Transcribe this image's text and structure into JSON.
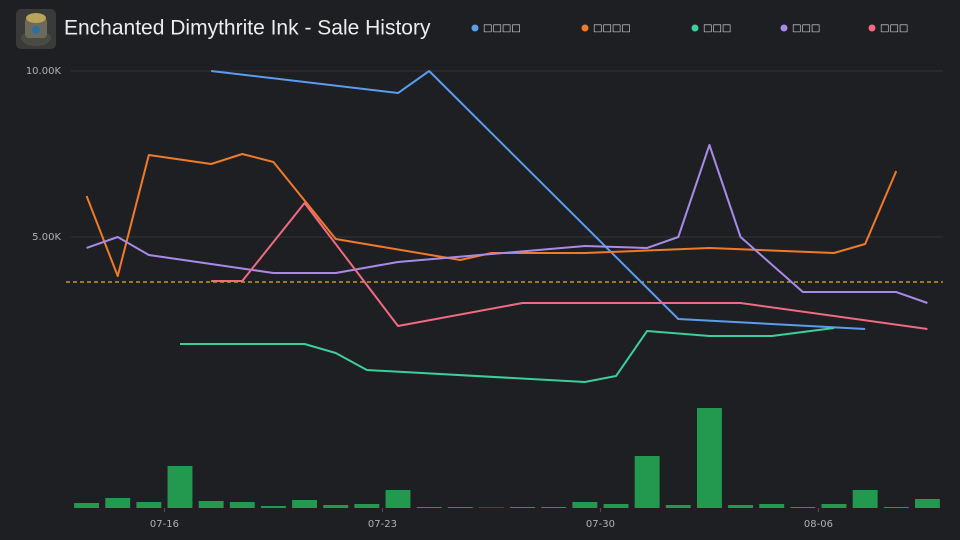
{
  "chart_data": [
    {
      "type": "line",
      "title": "Enchanted Dimythrite Ink - Sale History",
      "xlim": [
        "07-13",
        "08-09"
      ],
      "xticks": [
        "07-16",
        "07-23",
        "07-30",
        "08-06"
      ],
      "ylim": [
        0,
        10000
      ],
      "yticks": [
        {
          "value": 10000,
          "label": "10.00K"
        },
        {
          "value": 5000,
          "label": "5.00K"
        }
      ],
      "grid": true,
      "hline": 3645,
      "hline_color": "#d9b526",
      "series": [
        {
          "name": "□□□□",
          "color": "#5b9cf0",
          "x": [
            "07-17",
            "07-23",
            "07-24",
            "08-01",
            "08-07"
          ],
          "values": [
            10000,
            9337,
            10000,
            2530,
            2229
          ]
        },
        {
          "name": "□□□□",
          "color": "#f07a2a",
          "x": [
            "07-13",
            "07-14",
            "07-15",
            "07-17",
            "07-18",
            "07-19",
            "07-21",
            "07-25",
            "07-26",
            "07-29",
            "08-02",
            "08-06",
            "08-07",
            "08-08"
          ],
          "values": [
            6235,
            3825,
            7470,
            7199,
            7500,
            7259,
            4940,
            4307,
            4518,
            4518,
            4669,
            4518,
            4789,
            6988
          ]
        },
        {
          "name": "□□□",
          "color": "#3ccf9a",
          "x": [
            "07-16",
            "07-20",
            "07-21",
            "07-22",
            "07-29",
            "07-30",
            "07-31",
            "08-02",
            "08-04",
            "08-06"
          ],
          "values": [
            1777,
            1777,
            1506,
            994,
            633,
            813,
            2169,
            2018,
            2018,
            2259
          ]
        },
        {
          "name": "□□□",
          "color": "#a98ae8",
          "x": [
            "07-13",
            "07-14",
            "07-15",
            "07-17",
            "07-19",
            "07-21",
            "07-23",
            "07-26",
            "07-29",
            "07-31",
            "08-01",
            "08-02",
            "08-03",
            "08-05",
            "08-08",
            "08-09"
          ],
          "values": [
            4669,
            5000,
            4458,
            4187,
            3916,
            3916,
            4247,
            4488,
            4729,
            4669,
            5000,
            7771,
            5000,
            3343,
            3343,
            3012
          ]
        },
        {
          "name": "□□□",
          "color": "#f06a82",
          "x": [
            "07-17",
            "07-18",
            "07-20",
            "07-23",
            "07-27",
            "08-03",
            "08-09"
          ],
          "values": [
            3675,
            3675,
            6024,
            2319,
            3012,
            3012,
            2229
          ]
        }
      ]
    },
    {
      "type": "bar",
      "color": "#22994f",
      "ylim": [
        0,
        100
      ],
      "categories": [
        "07-13",
        "07-14",
        "07-15",
        "07-16",
        "07-17",
        "07-18",
        "07-19",
        "07-20",
        "07-21",
        "07-22",
        "07-23",
        "07-24",
        "07-25",
        "07-26",
        "07-27",
        "07-28",
        "07-29",
        "07-30",
        "07-31",
        "08-01",
        "08-02",
        "08-03",
        "08-04",
        "08-05",
        "08-06",
        "08-07",
        "08-08",
        "08-09"
      ],
      "values": [
        5,
        10,
        6,
        42,
        7,
        6,
        2,
        8,
        3,
        4,
        18,
        1,
        1,
        0.5,
        1,
        1,
        6,
        4,
        52,
        3,
        100,
        3,
        4,
        1,
        4,
        18,
        1,
        9
      ]
    }
  ]
}
